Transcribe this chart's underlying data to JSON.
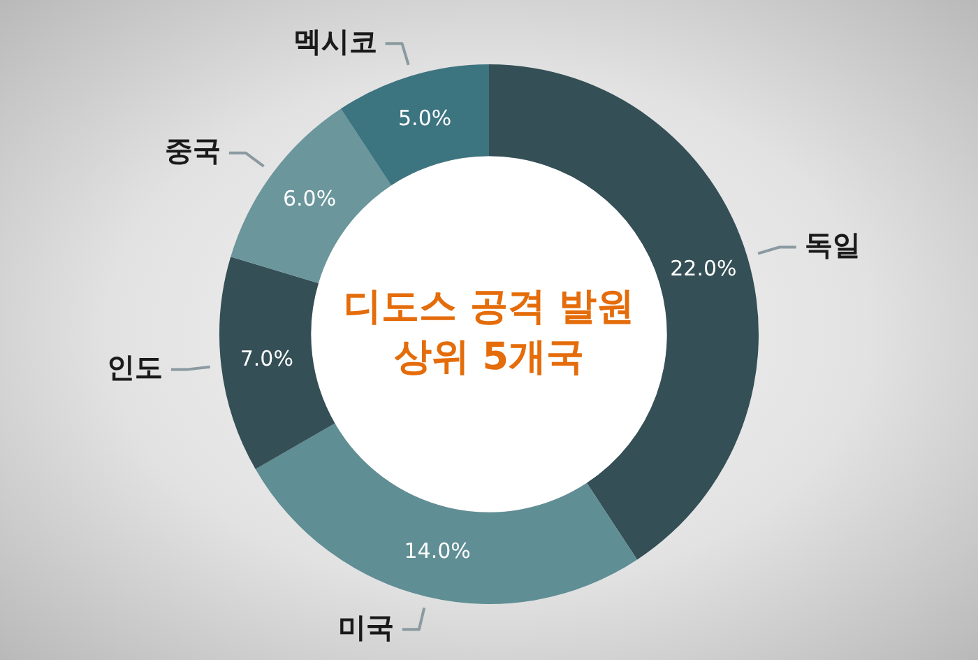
{
  "chart_data": {
    "type": "donut",
    "title": "디도스 공격 발원\n상위 5개국",
    "categories": [
      "독일",
      "미국",
      "인도",
      "중국",
      "멕시코"
    ],
    "values": [
      22.0,
      14.0,
      7.0,
      6.0,
      5.0
    ],
    "colors": [
      "#344f55",
      "#5f8e94",
      "#344f55",
      "#6a969c",
      "#3c7480"
    ],
    "value_labels": [
      "22.0%",
      "14.0%",
      "7.0%",
      "6.0%",
      "5.0%"
    ],
    "legend": false
  }
}
